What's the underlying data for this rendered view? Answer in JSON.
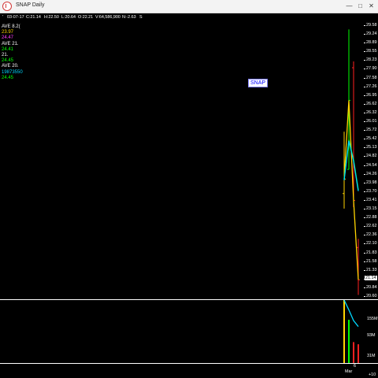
{
  "window": {
    "title": "SNAP Daily",
    "min_glyph": "—",
    "max_glyph": "□",
    "close_glyph": "✕"
  },
  "infobar": {
    "marker": "'",
    "date": "03-07-17",
    "close": "C:21.14",
    "high": "H:22.50",
    "low": "L:20.64",
    "open": "O:22.21",
    "volume": "V:64,586,900",
    "net": "N:-2.63",
    "flag": "S"
  },
  "indicators": [
    {
      "label": "AVE",
      "param": "8.2(",
      "color": "#ffffff"
    },
    {
      "label": "",
      "param": "23.97",
      "color": "#ffd400"
    },
    {
      "label": "",
      "param": "24.47",
      "color": "#ff3cff"
    },
    {
      "label": "AVE",
      "param": "21.",
      "color": "#ffffff"
    },
    {
      "label": "",
      "param": "24.41",
      "color": "#00ff00"
    },
    {
      "label": "",
      "param": "21.",
      "color": "#ffffff"
    },
    {
      "label": "",
      "param": "24.45",
      "color": "#00ff00"
    },
    {
      "label": "AVE",
      "param": "20.",
      "color": "#ffffff"
    },
    {
      "label": "",
      "param": "19873550",
      "color": "#00d8ff"
    },
    {
      "label": "",
      "param": "24.45",
      "color": "#00ff00"
    }
  ],
  "symbol": "SNAP",
  "price_axis": [
    "29.58",
    "29.24",
    "28.89",
    "28.55",
    "28.23",
    "27.90",
    "27.58",
    "27.26",
    "26.95",
    "26.62",
    "26.32",
    "26.01",
    "25.72",
    "25.42",
    "25.13",
    "24.82",
    "24.54",
    "24.26",
    "23.98",
    "23.70",
    "23.41",
    "23.15",
    "22.88",
    "22.62",
    "22.36",
    "22.10",
    "21.83",
    "21.58",
    "21.33",
    "21.14",
    "20.84",
    "20.60"
  ],
  "current_price": "21.14",
  "volume_axis": [
    "155M",
    "93M",
    "31M"
  ],
  "dates": {
    "day": "6",
    "month": "Mar",
    "more": "+10"
  },
  "colors": {
    "up": "#00ff00",
    "down": "#ff2020",
    "neutral": "#ffd400",
    "ave1": "#ffd400",
    "ave2": "#00ff00",
    "ave3": "#00d8ff",
    "ave4": "#ff3cff"
  },
  "chart_data": {
    "type": "bar",
    "title": "SNAP Daily",
    "bars": [
      {
        "date": "03-02-17",
        "open": 24.0,
        "high": 26.05,
        "low": 23.5,
        "close": 24.48,
        "color": "neutral"
      },
      {
        "date": "03-03-17",
        "open": 24.8,
        "high": 29.44,
        "low": 24.8,
        "close": 27.09,
        "color": "up"
      },
      {
        "date": "03-06-17",
        "open": 28.17,
        "high": 28.38,
        "low": 23.55,
        "close": 23.77,
        "color": "down"
      },
      {
        "date": "03-07-17",
        "open": 22.21,
        "high": 22.5,
        "low": 20.64,
        "close": 21.14,
        "color": "down"
      }
    ],
    "volume": [
      {
        "date": "03-02-17",
        "value": 217000000,
        "color": "neutral"
      },
      {
        "date": "03-03-17",
        "value": 149000000,
        "color": "up"
      },
      {
        "date": "03-06-17",
        "value": 72000000,
        "color": "down"
      },
      {
        "date": "03-07-17",
        "value": 64586900,
        "color": "down"
      }
    ],
    "ylim": [
      20.6,
      29.58
    ],
    "volume_ylim": [
      0,
      217000000
    ]
  }
}
